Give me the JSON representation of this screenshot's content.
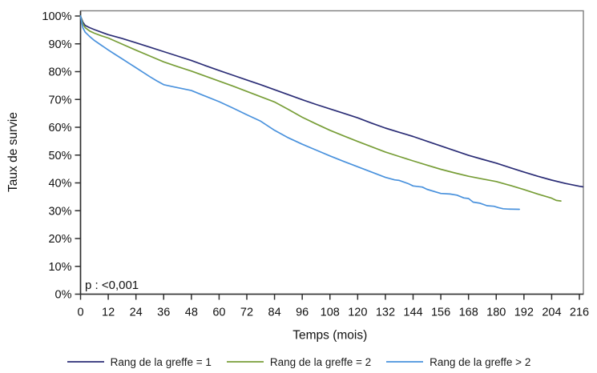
{
  "figure": {
    "p_value_annotation": "p : <0,001"
  },
  "chart_data": {
    "type": "line",
    "subtype": "kaplan-meier-survival",
    "title": "",
    "xlabel": "Temps (mois)",
    "ylabel": "Taux de survie",
    "xlim": [
      0,
      217.8
    ],
    "ylim": [
      0,
      100
    ],
    "grid": "off",
    "legend_position": "bottom",
    "annotation": "p : <0,001",
    "x_ticks": [
      0,
      12,
      24,
      36,
      48,
      60,
      72,
      84,
      96,
      108,
      120,
      132,
      144,
      156,
      168,
      180,
      192,
      204,
      216
    ],
    "y_ticks": [
      {
        "value": 0,
        "label": "0%"
      },
      {
        "value": 10,
        "label": "10%"
      },
      {
        "value": 20,
        "label": "20%"
      },
      {
        "value": 30,
        "label": "30%"
      },
      {
        "value": 40,
        "label": "40%"
      },
      {
        "value": 50,
        "label": "50%"
      },
      {
        "value": 60,
        "label": "60%"
      },
      {
        "value": 70,
        "label": "70%"
      },
      {
        "value": 80,
        "label": "80%"
      },
      {
        "value": 90,
        "label": "90%"
      },
      {
        "value": 100,
        "label": "100%"
      }
    ],
    "series": [
      {
        "name": "Rang de la greffe = 1",
        "color": "#2b2d76",
        "points": [
          [
            0,
            100
          ],
          [
            1,
            97.8
          ],
          [
            2,
            96.6
          ],
          [
            4,
            95.8
          ],
          [
            6,
            95.1
          ],
          [
            9,
            94.2
          ],
          [
            12,
            93.3
          ],
          [
            18,
            91.9
          ],
          [
            24,
            90.4
          ],
          [
            30,
            88.8
          ],
          [
            36,
            87.2
          ],
          [
            42,
            85.6
          ],
          [
            48,
            84.0
          ],
          [
            54,
            82.2
          ],
          [
            60,
            80.4
          ],
          [
            66,
            78.7
          ],
          [
            72,
            77.0
          ],
          [
            78,
            75.3
          ],
          [
            84,
            73.5
          ],
          [
            90,
            71.7
          ],
          [
            96,
            69.9
          ],
          [
            102,
            68.2
          ],
          [
            108,
            66.6
          ],
          [
            114,
            65.0
          ],
          [
            120,
            63.4
          ],
          [
            126,
            61.5
          ],
          [
            132,
            59.7
          ],
          [
            138,
            58.2
          ],
          [
            144,
            56.7
          ],
          [
            150,
            55.0
          ],
          [
            156,
            53.3
          ],
          [
            162,
            51.6
          ],
          [
            168,
            49.9
          ],
          [
            174,
            48.5
          ],
          [
            180,
            47.1
          ],
          [
            186,
            45.5
          ],
          [
            192,
            43.9
          ],
          [
            198,
            42.4
          ],
          [
            204,
            41.0
          ],
          [
            210,
            39.8
          ],
          [
            216,
            38.8
          ],
          [
            217.5,
            38.6
          ]
        ]
      },
      {
        "name": "Rang de la greffe = 2",
        "color": "#789e38",
        "points": [
          [
            0,
            100
          ],
          [
            1,
            97.2
          ],
          [
            2,
            95.8
          ],
          [
            4,
            94.6
          ],
          [
            6,
            93.8
          ],
          [
            9,
            92.9
          ],
          [
            12,
            92.1
          ],
          [
            18,
            89.9
          ],
          [
            24,
            87.7
          ],
          [
            30,
            85.6
          ],
          [
            36,
            83.5
          ],
          [
            42,
            81.8
          ],
          [
            48,
            80.2
          ],
          [
            54,
            78.4
          ],
          [
            60,
            76.6
          ],
          [
            66,
            74.8
          ],
          [
            72,
            72.9
          ],
          [
            78,
            71.0
          ],
          [
            84,
            69.1
          ],
          [
            90,
            66.4
          ],
          [
            96,
            63.6
          ],
          [
            102,
            61.2
          ],
          [
            108,
            58.9
          ],
          [
            114,
            56.9
          ],
          [
            120,
            54.9
          ],
          [
            126,
            53.0
          ],
          [
            132,
            51.1
          ],
          [
            138,
            49.5
          ],
          [
            144,
            47.9
          ],
          [
            150,
            46.4
          ],
          [
            156,
            44.9
          ],
          [
            162,
            43.6
          ],
          [
            168,
            42.4
          ],
          [
            174,
            41.4
          ],
          [
            180,
            40.5
          ],
          [
            186,
            39.1
          ],
          [
            192,
            37.6
          ],
          [
            198,
            36.0
          ],
          [
            204,
            34.5
          ],
          [
            206,
            33.7
          ],
          [
            208,
            33.5
          ]
        ]
      },
      {
        "name": "Rang de la greffe > 2",
        "color": "#4a92dd",
        "points": [
          [
            0,
            100
          ],
          [
            1,
            95.8
          ],
          [
            2,
            94.2
          ],
          [
            4,
            92.6
          ],
          [
            6,
            91.2
          ],
          [
            9,
            89.5
          ],
          [
            12,
            87.8
          ],
          [
            15,
            86.2
          ],
          [
            18,
            84.6
          ],
          [
            21,
            83.0
          ],
          [
            24,
            81.4
          ],
          [
            27,
            79.8
          ],
          [
            30,
            78.2
          ],
          [
            33,
            76.7
          ],
          [
            36,
            75.3
          ],
          [
            40,
            74.6
          ],
          [
            44,
            73.9
          ],
          [
            48,
            73.2
          ],
          [
            54,
            71.2
          ],
          [
            60,
            69.2
          ],
          [
            66,
            66.9
          ],
          [
            72,
            64.5
          ],
          [
            78,
            62.2
          ],
          [
            84,
            58.9
          ],
          [
            90,
            56.2
          ],
          [
            96,
            53.9
          ],
          [
            102,
            51.8
          ],
          [
            108,
            49.7
          ],
          [
            114,
            47.7
          ],
          [
            120,
            45.8
          ],
          [
            126,
            43.9
          ],
          [
            132,
            42.0
          ],
          [
            136,
            41.1
          ],
          [
            138,
            40.9
          ],
          [
            142,
            39.7
          ],
          [
            144,
            38.9
          ],
          [
            148,
            38.5
          ],
          [
            150,
            37.7
          ],
          [
            156,
            36.2
          ],
          [
            160,
            36.0
          ],
          [
            163,
            35.6
          ],
          [
            166,
            34.6
          ],
          [
            168,
            34.4
          ],
          [
            170,
            33.1
          ],
          [
            173,
            32.7
          ],
          [
            176,
            31.8
          ],
          [
            179,
            31.6
          ],
          [
            181,
            31.1
          ],
          [
            183,
            30.7
          ],
          [
            185,
            30.6
          ],
          [
            190,
            30.5
          ]
        ]
      }
    ]
  },
  "colors": {
    "frame": "#7d7d7d",
    "axis": "#2e2e2e",
    "text": "#111111"
  }
}
